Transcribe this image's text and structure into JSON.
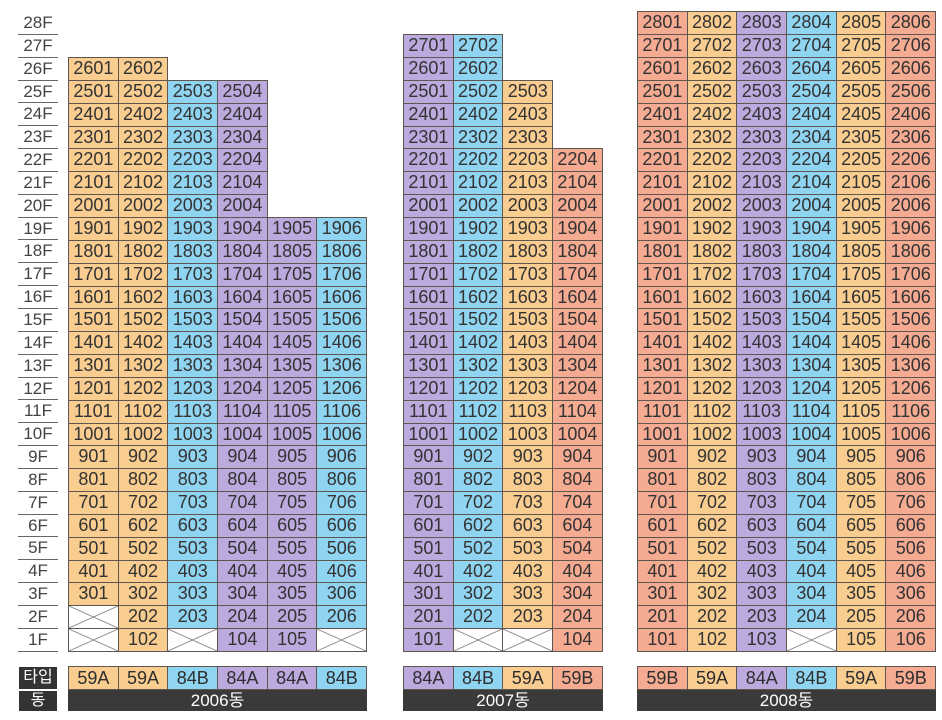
{
  "floors": [
    "28F",
    "27F",
    "26F",
    "25F",
    "24F",
    "23F",
    "22F",
    "21F",
    "20F",
    "19F",
    "18F",
    "17F",
    "16F",
    "15F",
    "14F",
    "13F",
    "12F",
    "11F",
    "10F",
    "9F",
    "8F",
    "7F",
    "6F",
    "5F",
    "4F",
    "3F",
    "2F",
    "1F"
  ],
  "footer": {
    "type_label": "타입",
    "building_label": "동"
  },
  "type_colors": {
    "59A": "#F9CC8F",
    "59B": "#F5AA92",
    "84A": "#BCA9DE",
    "84B": "#8FD4F1"
  },
  "buildings": [
    {
      "name": "2006동",
      "columns": [
        {
          "type": "59A",
          "units_by_floor": [
            null,
            null,
            "301",
            "401",
            "501",
            "601",
            "701",
            "801",
            "901",
            "1001",
            "1101",
            "1201",
            "1301",
            "1401",
            "1501",
            "1601",
            "1701",
            "1801",
            "1901",
            "2001",
            "2101",
            "2201",
            "2301",
            "2401",
            "2501",
            "2601"
          ]
        },
        {
          "type": "59A",
          "units_by_floor": [
            "102",
            "202",
            "302",
            "402",
            "502",
            "602",
            "702",
            "802",
            "902",
            "1002",
            "1102",
            "1202",
            "1302",
            "1402",
            "1502",
            "1602",
            "1702",
            "1802",
            "1902",
            "2002",
            "2102",
            "2202",
            "2302",
            "2402",
            "2502",
            "2602"
          ]
        },
        {
          "type": "84B",
          "units_by_floor": [
            null,
            "203",
            "303",
            "403",
            "503",
            "603",
            "703",
            "803",
            "903",
            "1003",
            "1103",
            "1203",
            "1303",
            "1403",
            "1503",
            "1603",
            "1703",
            "1803",
            "1903",
            "2003",
            "2103",
            "2203",
            "2303",
            "2403",
            "2503"
          ]
        },
        {
          "type": "84A",
          "units_by_floor": [
            "104",
            "204",
            "304",
            "404",
            "504",
            "604",
            "704",
            "804",
            "904",
            "1004",
            "1104",
            "1204",
            "1304",
            "1404",
            "1504",
            "1604",
            "1704",
            "1804",
            "1904",
            "2004",
            "2104",
            "2204",
            "2304",
            "2404",
            "2504"
          ]
        },
        {
          "type": "84A",
          "units_by_floor": [
            "105",
            "205",
            "305",
            "405",
            "505",
            "605",
            "705",
            "805",
            "905",
            "1005",
            "1105",
            "1205",
            "1305",
            "1405",
            "1505",
            "1605",
            "1705",
            "1805",
            "1905"
          ]
        },
        {
          "type": "84B",
          "units_by_floor": [
            null,
            "206",
            "306",
            "406",
            "506",
            "606",
            "706",
            "806",
            "906",
            "1006",
            "1106",
            "1206",
            "1306",
            "1406",
            "1506",
            "1606",
            "1706",
            "1806",
            "1906"
          ]
        }
      ]
    },
    {
      "name": "2007동",
      "columns": [
        {
          "type": "84A",
          "units_by_floor": [
            "101",
            "201",
            "301",
            "401",
            "501",
            "601",
            "701",
            "801",
            "901",
            "1001",
            "1101",
            "1201",
            "1301",
            "1401",
            "1501",
            "1601",
            "1701",
            "1801",
            "1901",
            "2001",
            "2101",
            "2201",
            "2301",
            "2401",
            "2501",
            "2601",
            "2701"
          ]
        },
        {
          "type": "84B",
          "units_by_floor": [
            null,
            "202",
            "302",
            "402",
            "502",
            "602",
            "702",
            "802",
            "902",
            "1002",
            "1102",
            "1202",
            "1302",
            "1402",
            "1502",
            "1602",
            "1702",
            "1802",
            "1902",
            "2002",
            "2102",
            "2202",
            "2302",
            "2402",
            "2502",
            "2602",
            "2702"
          ]
        },
        {
          "type": "59A",
          "units_by_floor": [
            null,
            "203",
            "303",
            "403",
            "503",
            "603",
            "703",
            "803",
            "903",
            "1003",
            "1103",
            "1203",
            "1303",
            "1403",
            "1503",
            "1603",
            "1703",
            "1803",
            "1903",
            "2003",
            "2103",
            "2203",
            "2303",
            "2403",
            "2503"
          ]
        },
        {
          "type": "59B",
          "units_by_floor": [
            "104",
            "204",
            "304",
            "404",
            "504",
            "604",
            "704",
            "804",
            "904",
            "1004",
            "1104",
            "1204",
            "1304",
            "1404",
            "1504",
            "1604",
            "1704",
            "1804",
            "1904",
            "2004",
            "2104",
            "2204"
          ]
        }
      ]
    },
    {
      "name": "2008동",
      "columns": [
        {
          "type": "59B",
          "units_by_floor": [
            "101",
            "201",
            "301",
            "401",
            "501",
            "601",
            "701",
            "801",
            "901",
            "1001",
            "1101",
            "1201",
            "1301",
            "1401",
            "1501",
            "1601",
            "1701",
            "1801",
            "1901",
            "2001",
            "2101",
            "2201",
            "2301",
            "2401",
            "2501",
            "2601",
            "2701",
            "2801"
          ]
        },
        {
          "type": "59A",
          "units_by_floor": [
            "102",
            "202",
            "302",
            "402",
            "502",
            "602",
            "702",
            "802",
            "902",
            "1002",
            "1102",
            "1202",
            "1302",
            "1402",
            "1502",
            "1602",
            "1702",
            "1802",
            "1902",
            "2002",
            "2102",
            "2202",
            "2302",
            "2402",
            "2502",
            "2602",
            "2702",
            "2802"
          ]
        },
        {
          "type": "84A",
          "units_by_floor": [
            "103",
            "203",
            "303",
            "403",
            "503",
            "603",
            "703",
            "803",
            "903",
            "1003",
            "1103",
            "1203",
            "1303",
            "1403",
            "1503",
            "1603",
            "1703",
            "1803",
            "1903",
            "2003",
            "2103",
            "2203",
            "2303",
            "2403",
            "2503",
            "2603",
            "2703",
            "2803"
          ]
        },
        {
          "type": "84B",
          "units_by_floor": [
            null,
            "204",
            "304",
            "404",
            "504",
            "604",
            "704",
            "804",
            "904",
            "1004",
            "1104",
            "1204",
            "1304",
            "1404",
            "1504",
            "1604",
            "1704",
            "1804",
            "1904",
            "2004",
            "2104",
            "2204",
            "2304",
            "2404",
            "2504",
            "2604",
            "2704",
            "2804"
          ]
        },
        {
          "type": "59A",
          "units_by_floor": [
            "105",
            "205",
            "305",
            "405",
            "505",
            "605",
            "705",
            "805",
            "905",
            "1005",
            "1105",
            "1205",
            "1305",
            "1405",
            "1505",
            "1605",
            "1705",
            "1805",
            "1905",
            "2005",
            "2105",
            "2205",
            "2305",
            "2405",
            "2505",
            "2605",
            "2705",
            "2805"
          ]
        },
        {
          "type": "59B",
          "units_by_floor": [
            "106",
            "206",
            "306",
            "406",
            "506",
            "606",
            "706",
            "806",
            "906",
            "1006",
            "1106",
            "1206",
            "1306",
            "1406",
            "1506",
            "1606",
            "1706",
            "1806",
            "1906",
            "2006",
            "2106",
            "2206",
            "2306",
            "2406",
            "2506",
            "2606",
            "2706",
            "2806"
          ]
        }
      ]
    }
  ]
}
